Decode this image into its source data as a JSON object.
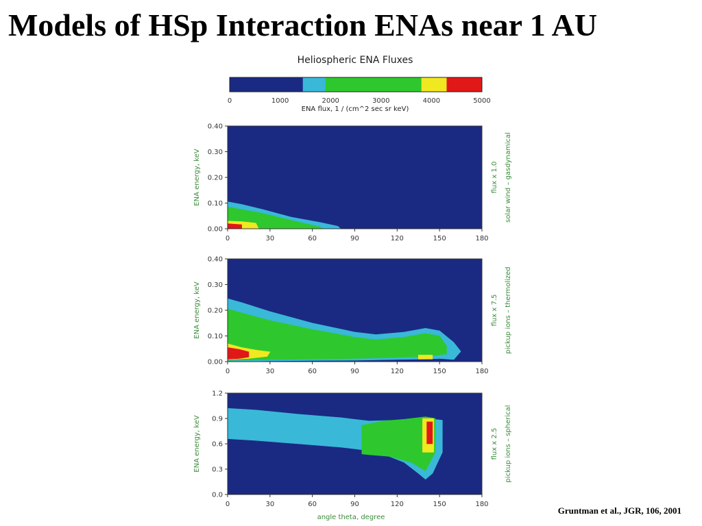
{
  "slide": {
    "title": "Models of HSp Interaction ENAs near 1 AU",
    "citation": "Gruntman et al., JGR, 106, 2001"
  },
  "colors": {
    "background": "#1a2a82",
    "cyan": "#3ab8d8",
    "green": "#2ec82e",
    "yellow": "#f0e820",
    "red": "#e01818"
  },
  "chart_data": {
    "type": "heatmap",
    "title": "Heliospheric ENA Fluxes",
    "colorbar": {
      "label": "ENA flux,  1 / (cm^2 sec sr keV)",
      "range": [
        0,
        5000
      ],
      "ticks": [
        "0",
        "1000",
        "2000",
        "3000",
        "4000",
        "5000"
      ],
      "bands": [
        {
          "from": 0,
          "to": 1450,
          "color": "#1a2a82"
        },
        {
          "from": 1450,
          "to": 1900,
          "color": "#3ab8d8"
        },
        {
          "from": 1900,
          "to": 3800,
          "color": "#2ec82e"
        },
        {
          "from": 3800,
          "to": 4300,
          "color": "#f0e820"
        },
        {
          "from": 4300,
          "to": 5000,
          "color": "#e01818"
        }
      ]
    },
    "x_axis": {
      "label": "angle theta,  degree",
      "range": [
        0,
        180
      ],
      "ticks": [
        "0",
        "30",
        "60",
        "90",
        "120",
        "150",
        "180"
      ]
    },
    "panels": [
      {
        "ylabel": "ENA energy,  keV",
        "ylim": [
          0,
          0.4
        ],
        "yticks": [
          "0.00",
          "0.10",
          "0.20",
          "0.30",
          "0.40"
        ],
        "caption": "flux  x 1.0",
        "model": "solar wind – gasdynamical",
        "regions": [
          {
            "color": "#3ab8d8",
            "polygon": [
              [
                0,
                0
              ],
              [
                0,
                0.105
              ],
              [
                10,
                0.095
              ],
              [
                25,
                0.075
              ],
              [
                45,
                0.045
              ],
              [
                65,
                0.025
              ],
              [
                78,
                0.01
              ],
              [
                80,
                0
              ]
            ]
          },
          {
            "color": "#2ec82e",
            "polygon": [
              [
                0,
                0
              ],
              [
                0,
                0.085
              ],
              [
                10,
                0.075
              ],
              [
                25,
                0.06
              ],
              [
                40,
                0.04
              ],
              [
                55,
                0.02
              ],
              [
                65,
                0.008
              ],
              [
                68,
                0
              ]
            ]
          },
          {
            "color": "#f0e820",
            "polygon": [
              [
                0,
                0
              ],
              [
                0,
                0.03
              ],
              [
                10,
                0.028
              ],
              [
                20,
                0.022
              ],
              [
                22,
                0
              ]
            ]
          },
          {
            "color": "#e01818",
            "polygon": [
              [
                0,
                0
              ],
              [
                0,
                0.02
              ],
              [
                10,
                0.016
              ],
              [
                10,
                0
              ]
            ]
          }
        ]
      },
      {
        "ylabel": "ENA energy,  keV",
        "ylim": [
          0,
          0.4
        ],
        "yticks": [
          "0.00",
          "0.10",
          "0.20",
          "0.30",
          "0.40"
        ],
        "caption": "flux  x 7.5",
        "model": "pickup ions – thermolized",
        "regions": [
          {
            "color": "#3ab8d8",
            "polygon": [
              [
                0,
                0
              ],
              [
                0,
                0.245
              ],
              [
                10,
                0.23
              ],
              [
                30,
                0.195
              ],
              [
                60,
                0.15
              ],
              [
                90,
                0.115
              ],
              [
                105,
                0.105
              ],
              [
                125,
                0.115
              ],
              [
                140,
                0.13
              ],
              [
                150,
                0.12
              ],
              [
                160,
                0.075
              ],
              [
                165,
                0.04
              ],
              [
                160,
                0.008
              ],
              [
                150,
                0.012
              ],
              [
                140,
                0.01
              ],
              [
                120,
                0.008
              ],
              [
                90,
                0.005
              ],
              [
                60,
                0.004
              ],
              [
                30,
                0.003
              ],
              [
                0,
                0
              ]
            ]
          },
          {
            "color": "#2ec82e",
            "polygon": [
              [
                0,
                0.005
              ],
              [
                0,
                0.205
              ],
              [
                10,
                0.19
              ],
              [
                30,
                0.16
              ],
              [
                60,
                0.125
              ],
              [
                90,
                0.095
              ],
              [
                105,
                0.085
              ],
              [
                125,
                0.095
              ],
              [
                140,
                0.11
              ],
              [
                150,
                0.1
              ],
              [
                155,
                0.06
              ],
              [
                155,
                0.03
              ],
              [
                140,
                0.02
              ],
              [
                120,
                0.016
              ],
              [
                90,
                0.012
              ],
              [
                60,
                0.01
              ],
              [
                30,
                0.008
              ]
            ]
          },
          {
            "color": "#f0e820",
            "polygon": [
              [
                0,
                0.008
              ],
              [
                0,
                0.07
              ],
              [
                10,
                0.055
              ],
              [
                20,
                0.045
              ],
              [
                30,
                0.038
              ],
              [
                28,
                0.02
              ],
              [
                15,
                0.012
              ]
            ]
          },
          {
            "color": "#f0e820",
            "polygon": [
              [
                135,
                0.01
              ],
              [
                135,
                0.026
              ],
              [
                145,
                0.026
              ],
              [
                145,
                0.01
              ]
            ]
          },
          {
            "color": "#e01818",
            "polygon": [
              [
                0,
                0.01
              ],
              [
                0,
                0.055
              ],
              [
                8,
                0.048
              ],
              [
                15,
                0.038
              ],
              [
                15,
                0.018
              ],
              [
                8,
                0.012
              ]
            ]
          }
        ]
      },
      {
        "ylabel": "ENA energy,  keV",
        "ylim": [
          0,
          1.2
        ],
        "yticks": [
          "0.0",
          "0.3",
          "0.6",
          "0.9",
          "1.2"
        ],
        "caption": "flux  x 2.5",
        "model": "pickup ions – spherical",
        "regions": [
          {
            "color": "#3ab8d8",
            "polygon": [
              [
                0,
                0.66
              ],
              [
                0,
                1.02
              ],
              [
                20,
                1.0
              ],
              [
                50,
                0.95
              ],
              [
                80,
                0.91
              ],
              [
                100,
                0.87
              ],
              [
                120,
                0.88
              ],
              [
                140,
                0.9
              ],
              [
                152,
                0.88
              ],
              [
                152,
                0.5
              ],
              [
                145,
                0.25
              ],
              [
                140,
                0.18
              ],
              [
                135,
                0.25
              ],
              [
                125,
                0.38
              ],
              [
                110,
                0.48
              ],
              [
                100,
                0.52
              ],
              [
                80,
                0.56
              ],
              [
                50,
                0.6
              ],
              [
                20,
                0.64
              ]
            ]
          },
          {
            "color": "#2ec82e",
            "polygon": [
              [
                95,
                0.48
              ],
              [
                95,
                0.82
              ],
              [
                110,
                0.87
              ],
              [
                125,
                0.89
              ],
              [
                140,
                0.92
              ],
              [
                147,
                0.9
              ],
              [
                147,
                0.5
              ],
              [
                140,
                0.28
              ],
              [
                130,
                0.38
              ],
              [
                115,
                0.45
              ],
              [
                100,
                0.47
              ]
            ]
          },
          {
            "color": "#f0e820",
            "polygon": [
              [
                138,
                0.5
              ],
              [
                138,
                0.9
              ],
              [
                146,
                0.9
              ],
              [
                146,
                0.5
              ]
            ]
          },
          {
            "color": "#e01818",
            "polygon": [
              [
                141,
                0.6
              ],
              [
                141,
                0.86
              ],
              [
                145,
                0.86
              ],
              [
                145,
                0.6
              ]
            ]
          }
        ]
      }
    ]
  }
}
